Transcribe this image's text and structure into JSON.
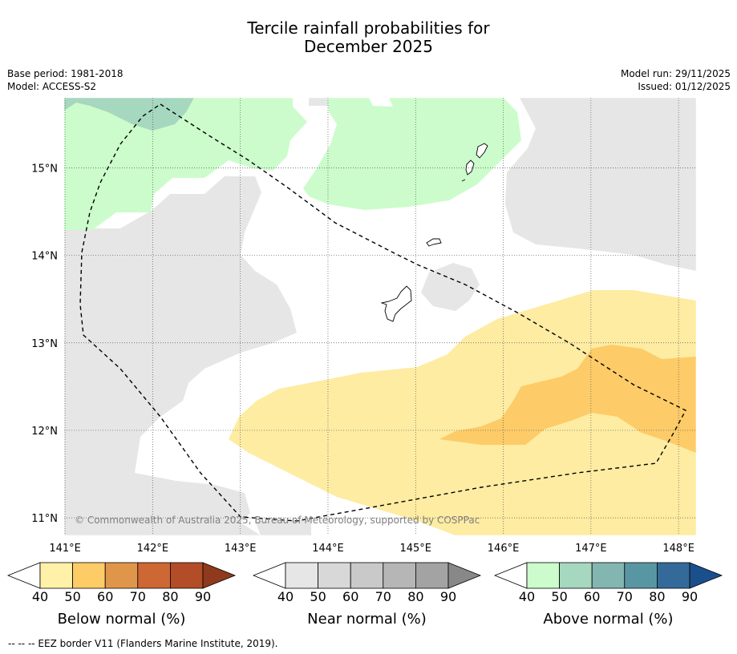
{
  "chart_data": {
    "type": "map",
    "title_line1": "Tercile rainfall probabilities for",
    "title_line2": "December 2025",
    "meta_left": [
      "Base period: 1981-2018",
      "Model: ACCESS-S2"
    ],
    "meta_right": [
      "Model run: 29/11/2025",
      "Issued: 01/12/2025"
    ],
    "lon_range": [
      140.99,
      148.2
    ],
    "lat_range": [
      10.8,
      15.8
    ],
    "lon_ticks": [
      141,
      142,
      143,
      144,
      145,
      146,
      147,
      148
    ],
    "lon_tick_labels": [
      "141°E",
      "142°E",
      "143°E",
      "144°E",
      "145°E",
      "146°E",
      "147°E",
      "148°E"
    ],
    "lat_ticks": [
      15,
      14,
      13,
      12,
      11
    ],
    "lat_tick_labels": [
      "15°N",
      "14°N",
      "13°N",
      "12°N",
      "11°N"
    ],
    "copyright": "© Commonwealth of Australia 2025, Bureau of Meteorology, supported by COSPPac",
    "colorbars": [
      {
        "label": "Below normal (%)",
        "ticks": [
          "40",
          "50",
          "60",
          "70",
          "80",
          "90"
        ],
        "colors": [
          "#fff1a8",
          "#fdcc66",
          "#e0964a",
          "#cd6734",
          "#b24d27",
          "#8f3a1c"
        ]
      },
      {
        "label": "Near normal (%)",
        "ticks": [
          "40",
          "50",
          "60",
          "70",
          "80",
          "90"
        ],
        "colors": [
          "#e6e6e6",
          "#d8d8d8",
          "#c9c9c9",
          "#b6b6b6",
          "#a3a3a3",
          "#888888"
        ]
      },
      {
        "label": "Above normal (%)",
        "ticks": [
          "40",
          "50",
          "60",
          "70",
          "80",
          "90"
        ],
        "colors": [
          "#ccfccb",
          "#a6d7bf",
          "#83b6b0",
          "#5996a3",
          "#346a9a",
          "#1a4f8c"
        ]
      }
    ],
    "footnote": "--  --  -- EEZ border V11 (Flanders Marine Institute, 2019).",
    "fill_colors": {
      "near_normal": "#e6e6e6",
      "above_normal_40": "#ccfccb",
      "above_normal_50": "#a6d7bf",
      "below_normal_40": "#fdeca2",
      "below_normal_50": "#fdcb68"
    }
  }
}
